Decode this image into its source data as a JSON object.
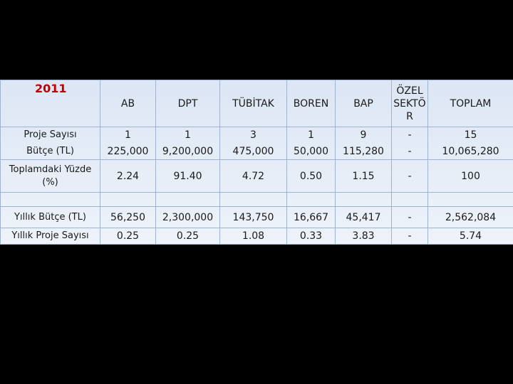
{
  "table": {
    "year": "2011",
    "header": [
      "AB",
      "DPT",
      "TÜBİTAK",
      "BOREN",
      "BAP",
      "ÖZEL SEKTÖR",
      "TOPLAM"
    ],
    "rows": [
      {
        "label": "Proje Sayısı",
        "cells": [
          "1",
          "1",
          "3",
          "1",
          "9",
          "-",
          "15"
        ]
      },
      {
        "label": "Bütçe (TL)",
        "cells": [
          "225,000",
          "9,200,000",
          "475,000",
          "50,000",
          "115,280",
          "-",
          "10,065,280"
        ]
      },
      {
        "label": "Toplamdaki Yüzde (%)",
        "cells": [
          "2.24",
          "91.40",
          "4.72",
          "0.50",
          "1.15",
          "-",
          "100"
        ]
      },
      {
        "label": "Yıllık Bütçe (TL)",
        "cells": [
          "56,250",
          "2,300,000",
          "143,750",
          "16,667",
          "45,417",
          "-",
          "2,562,084"
        ]
      },
      {
        "label": "Yıllık Proje Sayısı",
        "cells": [
          "0.25",
          "0.25",
          "1.08",
          "0.33",
          "3.83",
          "-",
          "5.74"
        ]
      }
    ]
  }
}
